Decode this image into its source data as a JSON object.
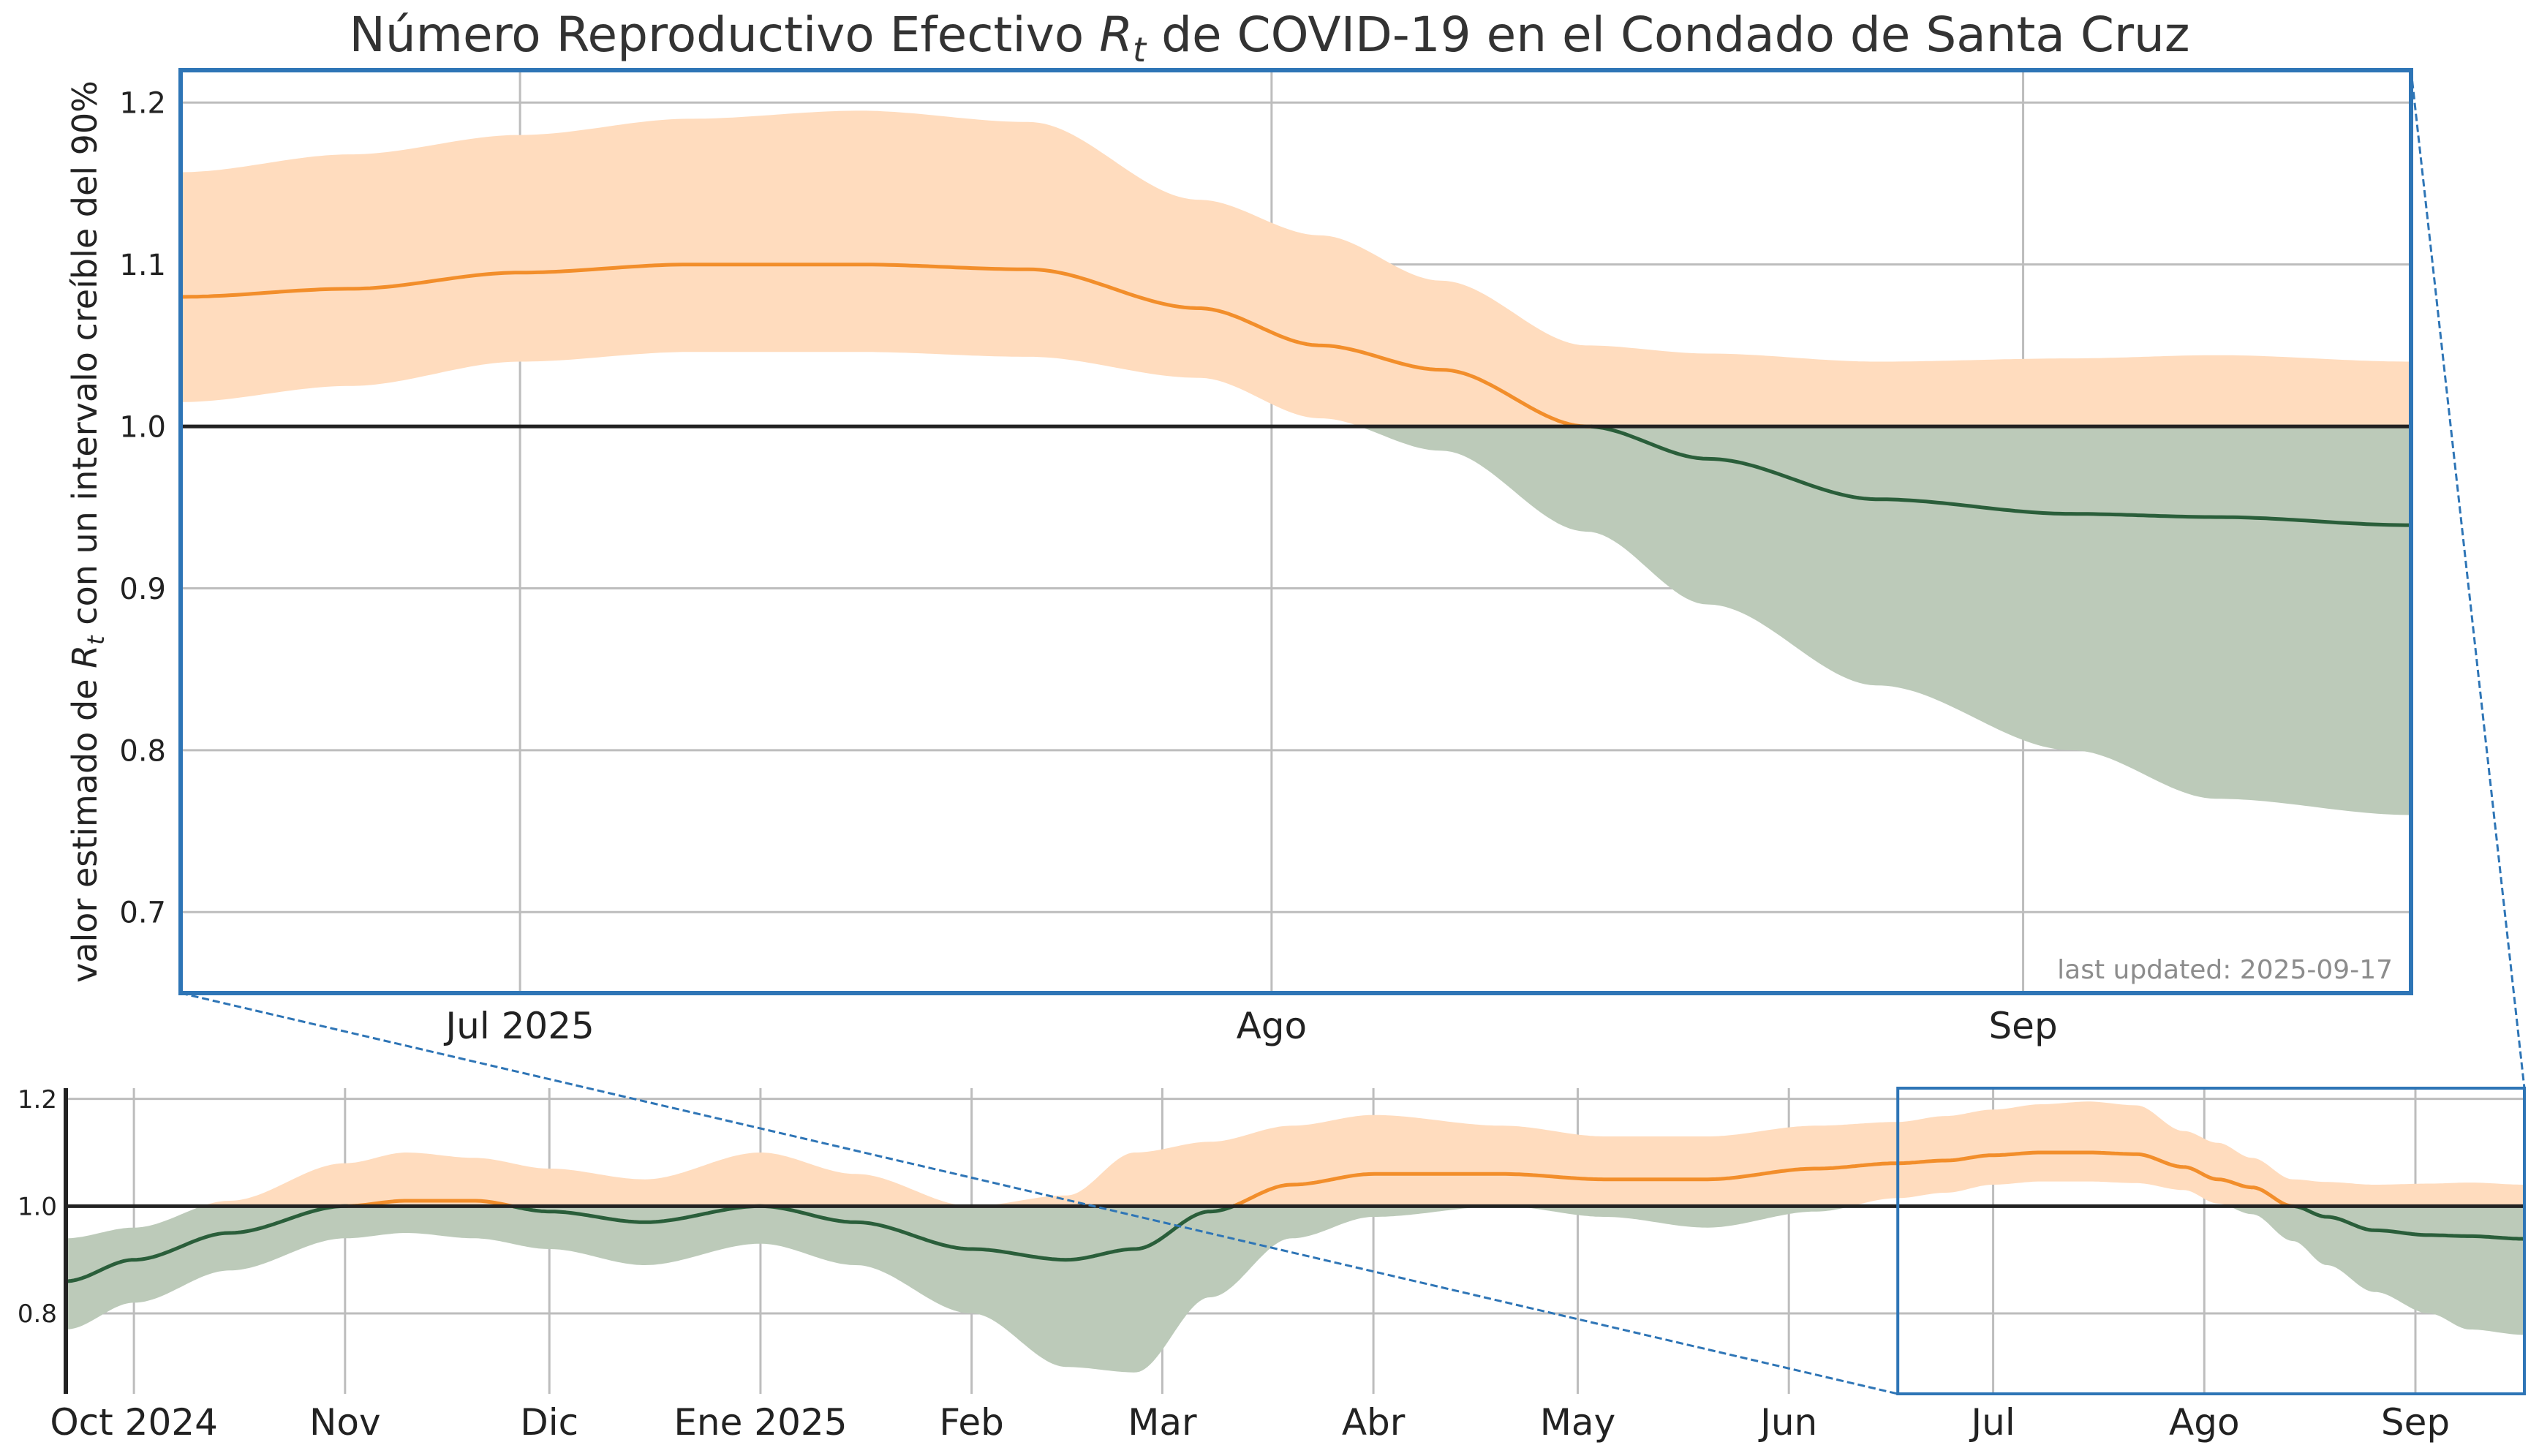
{
  "chart_data": {
    "type": "area",
    "title_prefix": "Número Reproductivo Efectivo ",
    "title_math": "R",
    "title_sub": "t",
    "title_suffix": " de COVID-19 en el Condado de Santa Cruz",
    "ylabel_prefix": "valor estimado de ",
    "ylabel_math": "R",
    "ylabel_sub": "t",
    "ylabel_suffix": " con un intervalo creíble del 90%",
    "annotation": "last updated: 2025-09-17",
    "threshold": 1.0,
    "colors": {
      "above_line": "#f28e2b",
      "above_band": "#ffdcbe",
      "below_line": "#2a5e3a",
      "below_band": "#bccab9",
      "threshold": "#222222",
      "frame": "#2e75b6",
      "grid": "#bdbdbd"
    },
    "main_panel": {
      "x_range": [
        "2025-06-17",
        "2025-09-17"
      ],
      "ylim": [
        0.65,
        1.22
      ],
      "yticks": [
        "0.7",
        "0.8",
        "0.9",
        "1.0",
        "1.1",
        "1.2"
      ],
      "xticks": [
        {
          "date": "2025-07-01",
          "label": "Jul 2025"
        },
        {
          "date": "2025-08-01",
          "label": "Ago"
        },
        {
          "date": "2025-09-01",
          "label": "Sep"
        }
      ]
    },
    "overview_panel": {
      "x_range": [
        "2024-09-21",
        "2025-09-17"
      ],
      "ylim": [
        0.65,
        1.22
      ],
      "yticks": [
        "0.8",
        "1.0",
        "1.2"
      ],
      "xticks": [
        {
          "date": "2024-10-01",
          "label": "Oct 2024"
        },
        {
          "date": "2024-11-01",
          "label": "Nov"
        },
        {
          "date": "2024-12-01",
          "label": "Dic"
        },
        {
          "date": "2025-01-01",
          "label": "Ene 2025"
        },
        {
          "date": "2025-02-01",
          "label": "Feb"
        },
        {
          "date": "2025-03-01",
          "label": "Mar"
        },
        {
          "date": "2025-04-01",
          "label": "Abr"
        },
        {
          "date": "2025-05-01",
          "label": "May"
        },
        {
          "date": "2025-06-01",
          "label": "Jun"
        },
        {
          "date": "2025-07-01",
          "label": "Jul"
        },
        {
          "date": "2025-08-01",
          "label": "Ago"
        },
        {
          "date": "2025-09-01",
          "label": "Sep"
        }
      ],
      "zoom_box": [
        "2025-06-17",
        "2025-09-17"
      ]
    },
    "series": [
      {
        "date": "2024-09-21",
        "rt": 0.86,
        "lower": 0.77,
        "upper": 0.94
      },
      {
        "date": "2024-10-01",
        "rt": 0.9,
        "lower": 0.82,
        "upper": 0.96
      },
      {
        "date": "2024-10-15",
        "rt": 0.95,
        "lower": 0.88,
        "upper": 1.01
      },
      {
        "date": "2024-11-01",
        "rt": 1.0,
        "lower": 0.94,
        "upper": 1.08
      },
      {
        "date": "2024-11-10",
        "rt": 1.01,
        "lower": 0.95,
        "upper": 1.1
      },
      {
        "date": "2024-11-20",
        "rt": 1.01,
        "lower": 0.94,
        "upper": 1.09
      },
      {
        "date": "2024-12-01",
        "rt": 0.99,
        "lower": 0.92,
        "upper": 1.07
      },
      {
        "date": "2024-12-15",
        "rt": 0.97,
        "lower": 0.89,
        "upper": 1.05
      },
      {
        "date": "2025-01-01",
        "rt": 1.0,
        "lower": 0.93,
        "upper": 1.1
      },
      {
        "date": "2025-01-15",
        "rt": 0.97,
        "lower": 0.89,
        "upper": 1.06
      },
      {
        "date": "2025-02-01",
        "rt": 0.92,
        "lower": 0.8,
        "upper": 1.0
      },
      {
        "date": "2025-02-15",
        "rt": 0.9,
        "lower": 0.7,
        "upper": 1.02
      },
      {
        "date": "2025-02-25",
        "rt": 0.92,
        "lower": 0.69,
        "upper": 1.1
      },
      {
        "date": "2025-03-08",
        "rt": 0.99,
        "lower": 0.83,
        "upper": 1.12
      },
      {
        "date": "2025-03-20",
        "rt": 1.04,
        "lower": 0.94,
        "upper": 1.15
      },
      {
        "date": "2025-04-01",
        "rt": 1.06,
        "lower": 0.98,
        "upper": 1.17
      },
      {
        "date": "2025-04-20",
        "rt": 1.06,
        "lower": 1.0,
        "upper": 1.15
      },
      {
        "date": "2025-05-05",
        "rt": 1.05,
        "lower": 0.98,
        "upper": 1.13
      },
      {
        "date": "2025-05-20",
        "rt": 1.05,
        "lower": 0.96,
        "upper": 1.13
      },
      {
        "date": "2025-06-05",
        "rt": 1.07,
        "lower": 0.99,
        "upper": 1.15
      },
      {
        "date": "2025-06-17",
        "rt": 1.08,
        "lower": 1.015,
        "upper": 1.157
      },
      {
        "date": "2025-06-24",
        "rt": 1.085,
        "lower": 1.025,
        "upper": 1.168
      },
      {
        "date": "2025-07-01",
        "rt": 1.095,
        "lower": 1.04,
        "upper": 1.18
      },
      {
        "date": "2025-07-08",
        "rt": 1.1,
        "lower": 1.046,
        "upper": 1.19
      },
      {
        "date": "2025-07-15",
        "rt": 1.1,
        "lower": 1.046,
        "upper": 1.195
      },
      {
        "date": "2025-07-22",
        "rt": 1.097,
        "lower": 1.043,
        "upper": 1.188
      },
      {
        "date": "2025-07-29",
        "rt": 1.073,
        "lower": 1.03,
        "upper": 1.14
      },
      {
        "date": "2025-08-03",
        "rt": 1.05,
        "lower": 1.005,
        "upper": 1.118
      },
      {
        "date": "2025-08-08",
        "rt": 1.035,
        "lower": 0.985,
        "upper": 1.09
      },
      {
        "date": "2025-08-14",
        "rt": 1.0,
        "lower": 0.935,
        "upper": 1.05
      },
      {
        "date": "2025-08-19",
        "rt": 0.98,
        "lower": 0.89,
        "upper": 1.045
      },
      {
        "date": "2025-08-26",
        "rt": 0.955,
        "lower": 0.84,
        "upper": 1.04
      },
      {
        "date": "2025-09-03",
        "rt": 0.946,
        "lower": 0.8,
        "upper": 1.042
      },
      {
        "date": "2025-09-09",
        "rt": 0.944,
        "lower": 0.77,
        "upper": 1.044
      },
      {
        "date": "2025-09-17",
        "rt": 0.939,
        "lower": 0.76,
        "upper": 1.04
      }
    ]
  }
}
